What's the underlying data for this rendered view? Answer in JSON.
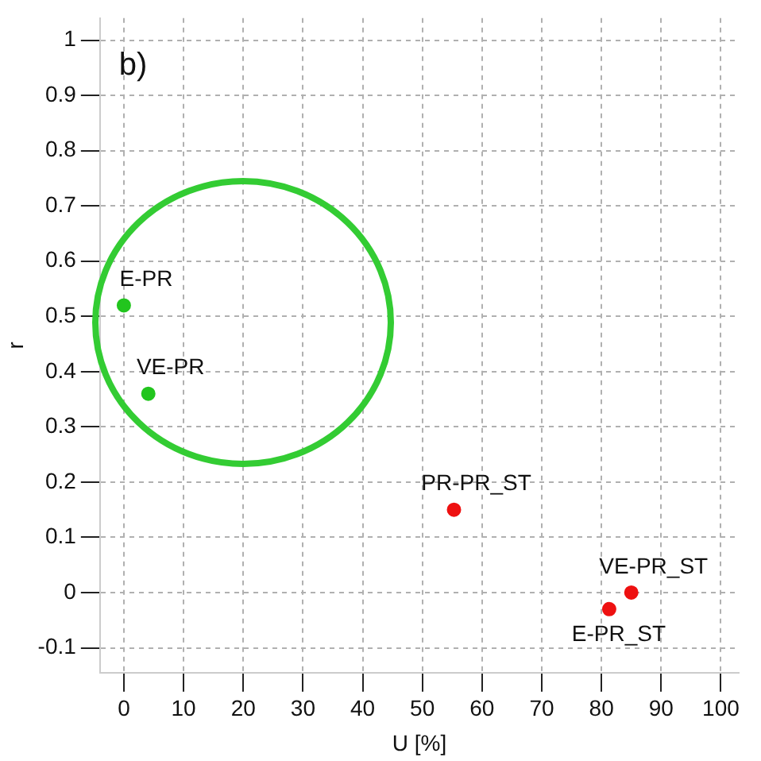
{
  "chart_data": {
    "type": "scatter",
    "xlabel": "U [%]",
    "ylabel": "r",
    "series": [
      {
        "color": "#22c51e",
        "x": [
          0,
          4.1
        ],
        "values": [
          0.52,
          0.36
        ]
      },
      {
        "color": "#ee1111",
        "x": [
          55.3,
          85,
          81.3
        ],
        "values": [
          0.15,
          0,
          -0.03
        ]
      }
    ],
    "xlim": [
      -4,
      103
    ],
    "ylim": [
      -0.145,
      1.04
    ],
    "xticks": [
      0,
      10,
      20,
      30,
      40,
      50,
      60,
      70,
      80,
      90,
      100
    ],
    "yticks": [
      -0.1,
      0,
      0.1,
      0.2,
      0.3,
      0.4,
      0.5,
      0.6,
      0.7,
      0.8,
      0.9,
      1
    ],
    "grid": true,
    "legend": false,
    "marker": "circle",
    "annotations": [
      "b)",
      {
        "text": "E-PR",
        "x": 0,
        "y": 0.52
      },
      {
        "text": "VE-PR",
        "x": 4.1,
        "y": 0.36
      },
      {
        "text": "PR-PR_ST",
        "x": 55.3,
        "y": 0.15
      },
      {
        "text": "VE-PR_ST",
        "x": 85,
        "y": 0
      },
      {
        "text": "E-PR_ST",
        "x": 81.3,
        "y": -0.03
      }
    ]
  }
}
